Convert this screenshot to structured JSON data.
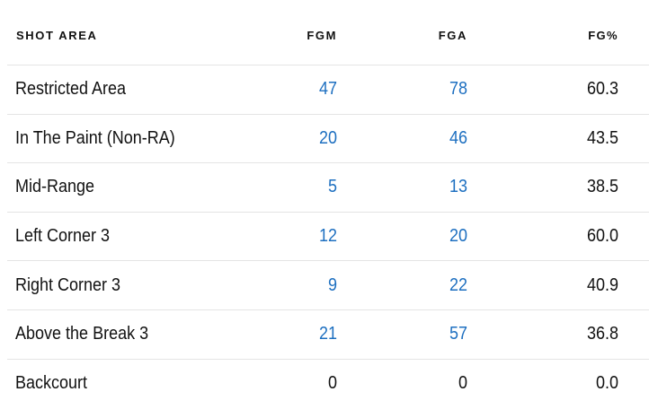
{
  "headers": {
    "area": "SHOT AREA",
    "fgm": "FGM",
    "fga": "FGA",
    "pct": "FG%"
  },
  "link_color": "#1d6fc0",
  "rows": [
    {
      "area": "Restricted Area",
      "fgm": "47",
      "fga": "78",
      "pct": "60.3",
      "linked": true
    },
    {
      "area": "In The Paint (Non-RA)",
      "fgm": "20",
      "fga": "46",
      "pct": "43.5",
      "linked": true
    },
    {
      "area": "Mid-Range",
      "fgm": "5",
      "fga": "13",
      "pct": "38.5",
      "linked": true
    },
    {
      "area": "Left Corner 3",
      "fgm": "12",
      "fga": "20",
      "pct": "60.0",
      "linked": true
    },
    {
      "area": "Right Corner 3",
      "fgm": "9",
      "fga": "22",
      "pct": "40.9",
      "linked": true
    },
    {
      "area": "Above the Break 3",
      "fgm": "21",
      "fga": "57",
      "pct": "36.8",
      "linked": true
    },
    {
      "area": "Backcourt",
      "fgm": "0",
      "fga": "0",
      "pct": "0.0",
      "linked": false
    }
  ]
}
